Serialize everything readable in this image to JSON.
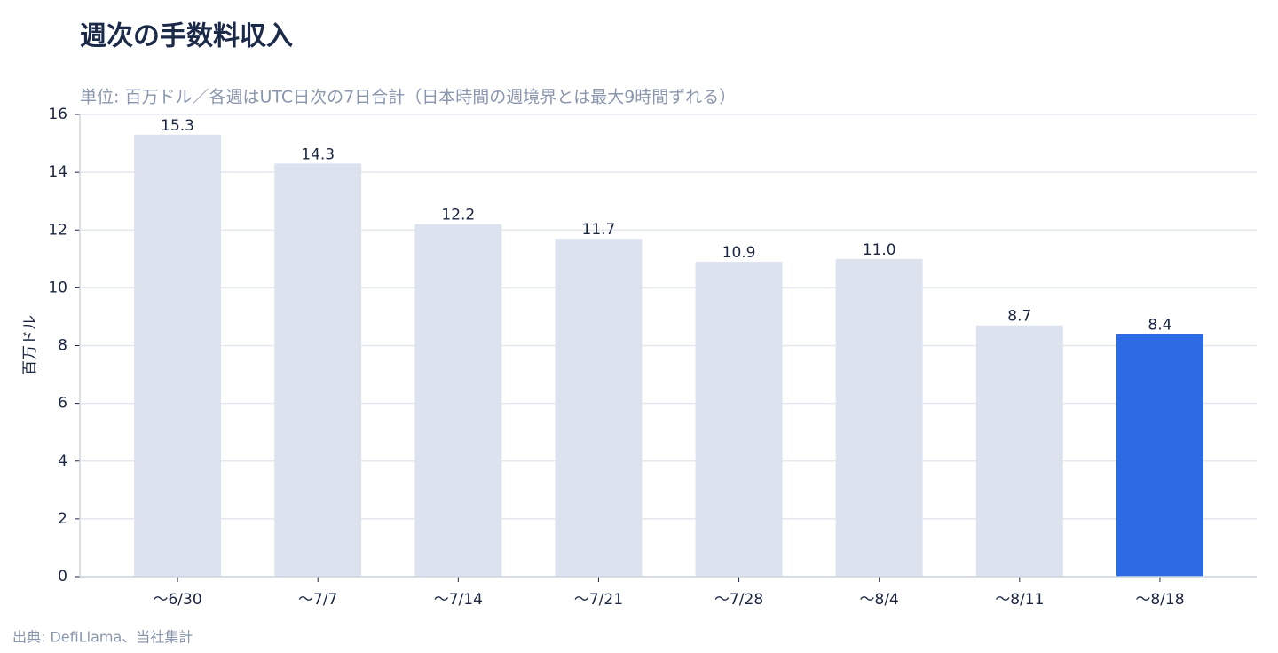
{
  "chart_data": {
    "type": "bar",
    "title": "週次の手数料収入",
    "subtitle": "単位: 百万ドル／各週はUTC日次の7日合計（日本時間の週境界とは最大9時間ずれる）",
    "source": "出典: DefiLlama、当社集計",
    "ylabel": "百万ドル",
    "categories": [
      "〜6/30",
      "〜7/7",
      "〜7/14",
      "〜7/21",
      "〜7/28",
      "〜8/4",
      "〜8/11",
      "〜8/18"
    ],
    "values": [
      15.3,
      14.3,
      12.2,
      11.7,
      10.9,
      11.0,
      8.7,
      8.4
    ],
    "value_labels": [
      "15.3",
      "14.3",
      "12.2",
      "11.7",
      "10.9",
      "11.0",
      "8.7",
      "8.4"
    ],
    "colors": [
      "#dde3ee",
      "#dde3ee",
      "#dde3ee",
      "#dde3ee",
      "#dde3ee",
      "#dde3ee",
      "#dde3ee",
      "#2d6be4"
    ],
    "ylim": [
      0,
      16
    ],
    "yticks": [
      0,
      2,
      4,
      6,
      8,
      10,
      12,
      14,
      16
    ],
    "grid": true
  }
}
